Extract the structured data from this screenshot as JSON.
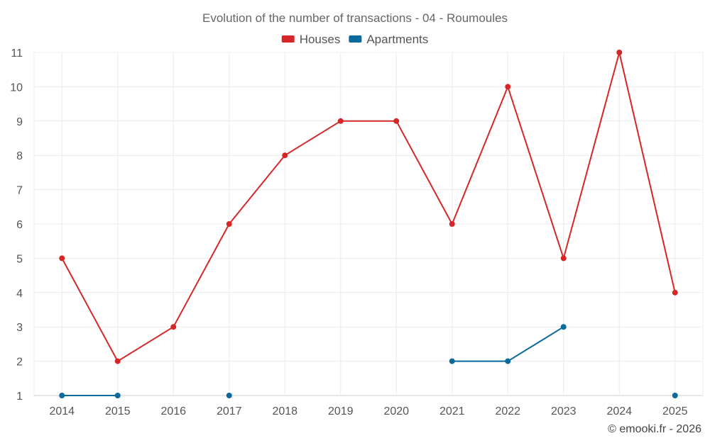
{
  "chart_data": {
    "type": "line",
    "title": "Evolution of the number of transactions - 04 - Roumoules",
    "x": [
      "2014",
      "2015",
      "2016",
      "2017",
      "2018",
      "2019",
      "2020",
      "2021",
      "2022",
      "2023",
      "2024",
      "2025"
    ],
    "ylim": [
      1,
      11
    ],
    "yticks": [
      1,
      2,
      3,
      4,
      5,
      6,
      7,
      8,
      9,
      10,
      11
    ],
    "grid": true,
    "legend_position": "top-center",
    "series": [
      {
        "name": "Houses",
        "color": "#d62728",
        "values": [
          5,
          2,
          3,
          6,
          8,
          9,
          9,
          6,
          10,
          5,
          11,
          4
        ]
      },
      {
        "name": "Apartments",
        "color": "#0a6a9c",
        "values": [
          1,
          1,
          null,
          1,
          null,
          null,
          null,
          2,
          2,
          3,
          null,
          1
        ]
      }
    ]
  },
  "credit": "© emooki.fr - 2026"
}
